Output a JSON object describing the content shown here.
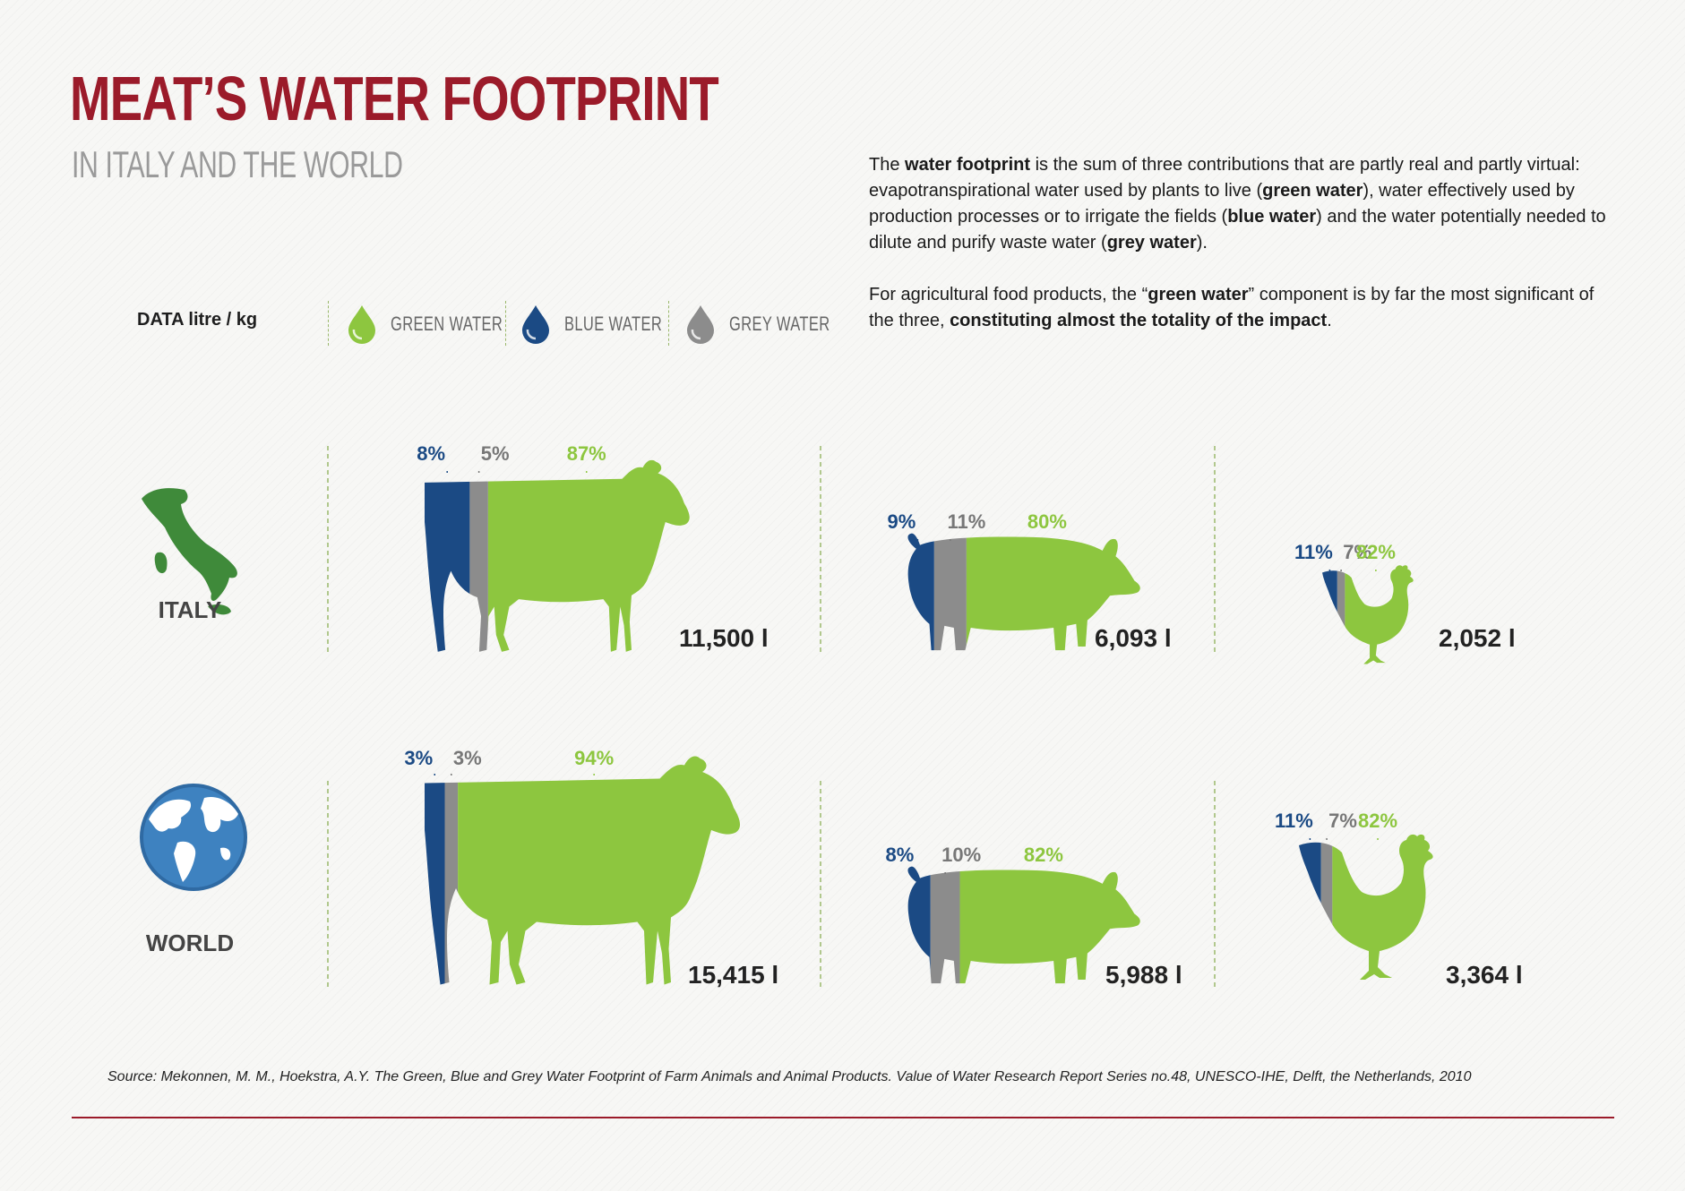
{
  "header": {
    "title": "MEAT’S WATER FOOTPRINT",
    "subtitle": "IN ITALY AND THE WORLD"
  },
  "intro": {
    "p1_a": "The ",
    "p1_b": "water footprint",
    "p1_c": "  is the sum of three contributions that are partly real and partly virtual: evapotranspirational water used by plants to live (",
    "p1_d": "green water",
    "p1_e": "), water effectively used by  production processes or to irrigate the fields (",
    "p1_f": "blue water",
    "p1_g": ") and the water potentially needed to dilute and purify waste water (",
    "p1_h": "grey water",
    "p1_i": ").",
    "p2_a": "For agricultural food products, the “",
    "p2_b": "green water",
    "p2_c": "” component is by far the most significant of the three, ",
    "p2_d": "constituting almost the totality of the impact",
    "p2_e": "."
  },
  "legend": {
    "data_label": "DATA litre / kg",
    "items": [
      {
        "label": "GREEN WATER",
        "color": "#8dc63f",
        "icon": "green-water-drop-icon"
      },
      {
        "label": "BLUE WATER",
        "color": "#1b4a84",
        "icon": "blue-water-drop-icon"
      },
      {
        "label": "GREY WATER",
        "color": "#8c8c8c",
        "icon": "grey-water-drop-icon"
      }
    ]
  },
  "colors": {
    "green": "#8dc63f",
    "blue": "#1b4a84",
    "grey": "#8c8c8c",
    "italy_map": "#3f8a3a",
    "globe": "#3e82c0",
    "accent": "#9b1b2a"
  },
  "chart_data": {
    "type": "table",
    "unit": "litre / kg",
    "components": [
      "blue",
      "grey",
      "green"
    ],
    "rows": [
      {
        "region": "ITALY",
        "icon": "italy-map-icon",
        "animals": [
          {
            "animal": "cow",
            "blue_pct": 8,
            "grey_pct": 5,
            "green_pct": 87,
            "blue_label": "8%",
            "grey_label": "5%",
            "green_label": "87%",
            "total": 11500,
            "total_label": "11,500 l"
          },
          {
            "animal": "pig",
            "blue_pct": 9,
            "grey_pct": 11,
            "green_pct": 80,
            "blue_label": "9%",
            "grey_label": "11%",
            "green_label": "80%",
            "total": 6093,
            "total_label": "6,093 l"
          },
          {
            "animal": "chicken",
            "blue_pct": 11,
            "grey_pct": 7,
            "green_pct": 82,
            "blue_label": "11%",
            "grey_label": "7%",
            "green_label": "82%",
            "total": 2052,
            "total_label": "2,052 l"
          }
        ]
      },
      {
        "region": "WORLD",
        "icon": "globe-icon",
        "animals": [
          {
            "animal": "cow",
            "blue_pct": 3,
            "grey_pct": 3,
            "green_pct": 94,
            "blue_label": "3%",
            "grey_label": "3%",
            "green_label": "94%",
            "total": 15415,
            "total_label": "15,415 l"
          },
          {
            "animal": "pig",
            "blue_pct": 8,
            "grey_pct": 10,
            "green_pct": 82,
            "blue_label": "8%",
            "grey_label": "10%",
            "green_label": "82%",
            "total": 5988,
            "total_label": "5,988 l"
          },
          {
            "animal": "chicken",
            "blue_pct": 11,
            "grey_pct": 7,
            "green_pct": 82,
            "blue_label": "11%",
            "grey_label": "7%",
            "green_label": "82%",
            "total": 3364,
            "total_label": "3,364 l"
          }
        ]
      }
    ]
  },
  "footer": {
    "source": "Source: Mekonnen, M. M., Hoekstra, A.Y. The Green, Blue and Grey Water Footprint of Farm Animals and Animal Products. Value of Water Research Report Series no.48, UNESCO-IHE, Delft, the Netherlands, 2010"
  }
}
